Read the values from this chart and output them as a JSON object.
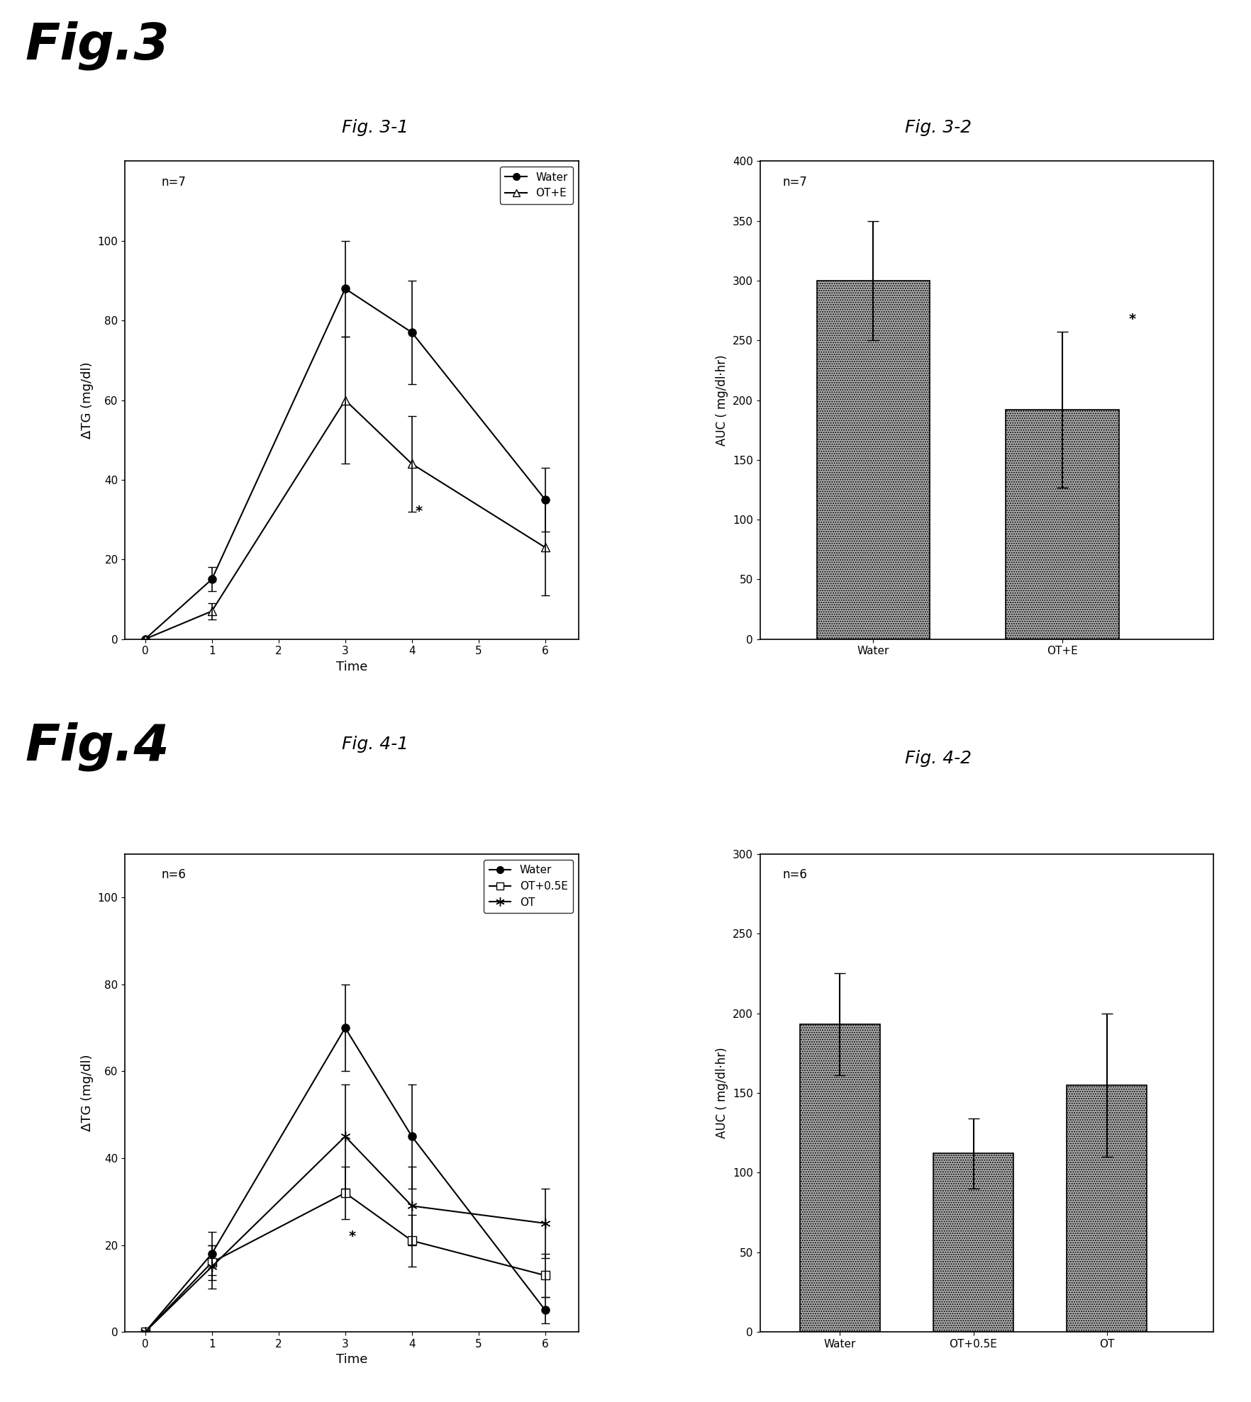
{
  "fig3_title": "Fig. 3-1",
  "fig32_title": "Fig. 3-2",
  "fig4_title": "Fig. 4-1",
  "fig42_title": "Fig. 4-2",
  "big_title3": "Fig.3",
  "big_title4": "Fig.4",
  "fig31": {
    "x": [
      0,
      1,
      3,
      4,
      6
    ],
    "water_y": [
      0,
      15,
      88,
      77,
      35
    ],
    "water_err": [
      0,
      3,
      12,
      13,
      8
    ],
    "ote_y": [
      0,
      7,
      60,
      44,
      23
    ],
    "ote_err": [
      0,
      2,
      16,
      12,
      12
    ],
    "ylabel": "ΔTG (mg/dl)",
    "xlabel": "Time",
    "n_label": "n=7",
    "ylim": [
      0,
      120
    ],
    "yticks": [
      0,
      20,
      40,
      60,
      80,
      100
    ],
    "xticks": [
      0,
      1,
      2,
      3,
      4,
      5,
      6
    ],
    "star_x": 4.05,
    "star_y": 32,
    "star_label": "*"
  },
  "fig32": {
    "categories": [
      "Water",
      "OT+E"
    ],
    "values": [
      300,
      192
    ],
    "errors": [
      50,
      65
    ],
    "ylabel": "AUC ( mg/dl·hr)",
    "n_label": "n=7",
    "ylim": [
      0,
      400
    ],
    "yticks": [
      0,
      50,
      100,
      150,
      200,
      250,
      300,
      350,
      400
    ],
    "star_label": "*"
  },
  "fig41": {
    "x": [
      0,
      1,
      3,
      4,
      6
    ],
    "water_y": [
      0,
      18,
      70,
      45,
      5
    ],
    "water_err": [
      0,
      5,
      10,
      12,
      3
    ],
    "ot05e_y": [
      0,
      16,
      32,
      21,
      13
    ],
    "ot05e_err": [
      0,
      4,
      6,
      6,
      5
    ],
    "ot_y": [
      0,
      15,
      45,
      29,
      25
    ],
    "ot_err": [
      0,
      5,
      12,
      9,
      8
    ],
    "ylabel": "ΔTG (mg/dl)",
    "xlabel": "Time",
    "n_label": "n=6",
    "ylim": [
      0,
      110
    ],
    "yticks": [
      0,
      20,
      40,
      60,
      80,
      100
    ],
    "xticks": [
      0,
      1,
      2,
      3,
      4,
      5,
      6
    ],
    "star_x": 3.05,
    "star_y": 22,
    "star_label": "*"
  },
  "fig42": {
    "categories": [
      "Water",
      "OT+0.5E",
      "OT"
    ],
    "values": [
      193,
      112,
      155
    ],
    "errors": [
      32,
      22,
      45
    ],
    "ylabel": "AUC ( mg/dl·hr)",
    "n_label": "n=6",
    "ylim": [
      0,
      300
    ],
    "yticks": [
      0,
      50,
      100,
      150,
      200,
      250,
      300
    ]
  },
  "background_color": "#ffffff",
  "line_color": "#000000"
}
